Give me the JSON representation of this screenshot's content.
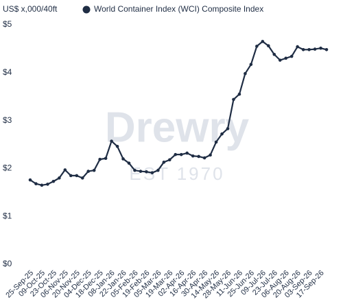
{
  "chart_data": {
    "type": "line",
    "y_axis_label": "US$ x,000/40ft",
    "watermark": [
      "Drewry",
      "EST 1970"
    ],
    "categories": [
      "25-Sep-25",
      null,
      "09-Oct-25",
      null,
      "23-Oct-25",
      null,
      "06-Nov-25",
      null,
      "20-Nov-25",
      null,
      "04-Dec-25",
      null,
      "18-Dec-25",
      null,
      "08-Jan-26",
      null,
      "22-Jan-26",
      null,
      "05-Feb-26",
      null,
      "19-Feb-26",
      null,
      "05-Mar-26",
      null,
      "19-Mar-26",
      null,
      "02-Apr-26",
      null,
      "16-Apr-26",
      null,
      "30-Apr-26",
      null,
      "14-May-26",
      null,
      "28-May-26",
      null,
      "11-Jun-26",
      null,
      "25-Jun-26",
      null,
      "09-Jul-26",
      null,
      "23-Jul-26",
      null,
      "06-Aug-26",
      null,
      "20-Aug-26",
      null,
      "03-Sep-26",
      null,
      "17-Sep-26",
      null
    ],
    "series": [
      {
        "name": "World Container Index (WCI) Composite Index",
        "color": "#1f2d44",
        "values": [
          1.76,
          1.68,
          1.65,
          1.67,
          1.73,
          1.8,
          1.97,
          1.85,
          1.85,
          1.8,
          1.94,
          1.96,
          2.19,
          2.21,
          2.57,
          2.46,
          2.2,
          2.11,
          1.96,
          1.94,
          1.93,
          1.91,
          1.96,
          2.13,
          2.18,
          2.29,
          2.29,
          2.32,
          2.26,
          2.25,
          2.22,
          2.28,
          2.55,
          2.72,
          2.83,
          3.44,
          3.55,
          3.98,
          4.17,
          4.55,
          4.65,
          4.56,
          4.38,
          4.26,
          4.3,
          4.34,
          4.54,
          4.48,
          4.48,
          4.49,
          4.51,
          4.48
        ]
      }
    ],
    "ylim": [
      0,
      5
    ],
    "yticks": [
      {
        "value": 0,
        "label": "$0"
      },
      {
        "value": 1,
        "label": "$1"
      },
      {
        "value": 2,
        "label": "$2"
      },
      {
        "value": 3,
        "label": "$3"
      },
      {
        "value": 4,
        "label": "$4"
      },
      {
        "value": 5,
        "label": "$5"
      }
    ],
    "grid": false
  }
}
